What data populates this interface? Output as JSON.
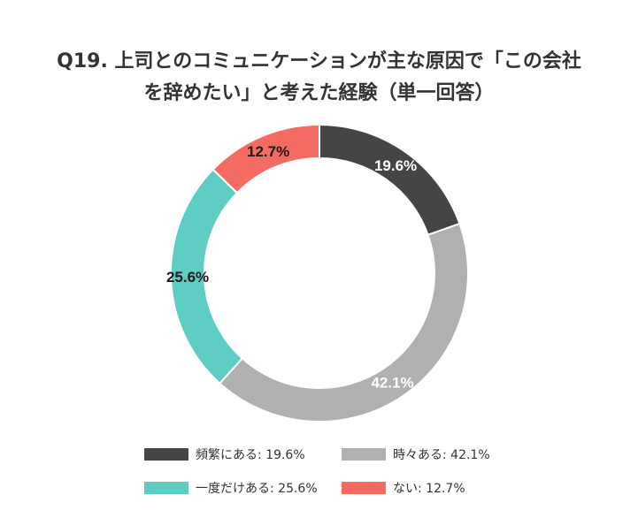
{
  "chart_data": {
    "type": "pie",
    "donut": true,
    "title_lines": [
      "Q19. 上司とのコミュニケーションが主な原因で「この会社",
      "を辞めたい」と考えた経験（単一回答）"
    ],
    "categories": [
      "頻繁にある",
      "時々ある",
      "一度だけある",
      "ない"
    ],
    "values": [
      19.6,
      42.1,
      25.6,
      12.7
    ],
    "data_labels": [
      "19.6%",
      "42.1%",
      "25.6%",
      "12.7%"
    ],
    "legend_labels": [
      "頻繁にある: 19.6%",
      "時々ある: 42.1%",
      "一度だけある: 25.6%",
      "ない: 12.7%"
    ],
    "colors": [
      "#454545",
      "#b0b0b0",
      "#5ecdc4",
      "#f46b61"
    ],
    "label_colors": [
      "#ffffff",
      "#ffffff",
      "#1a1a1a",
      "#1a1a1a"
    ],
    "start_angle": "12 o'clock",
    "direction": "clockwise",
    "legend_position": "bottom"
  }
}
